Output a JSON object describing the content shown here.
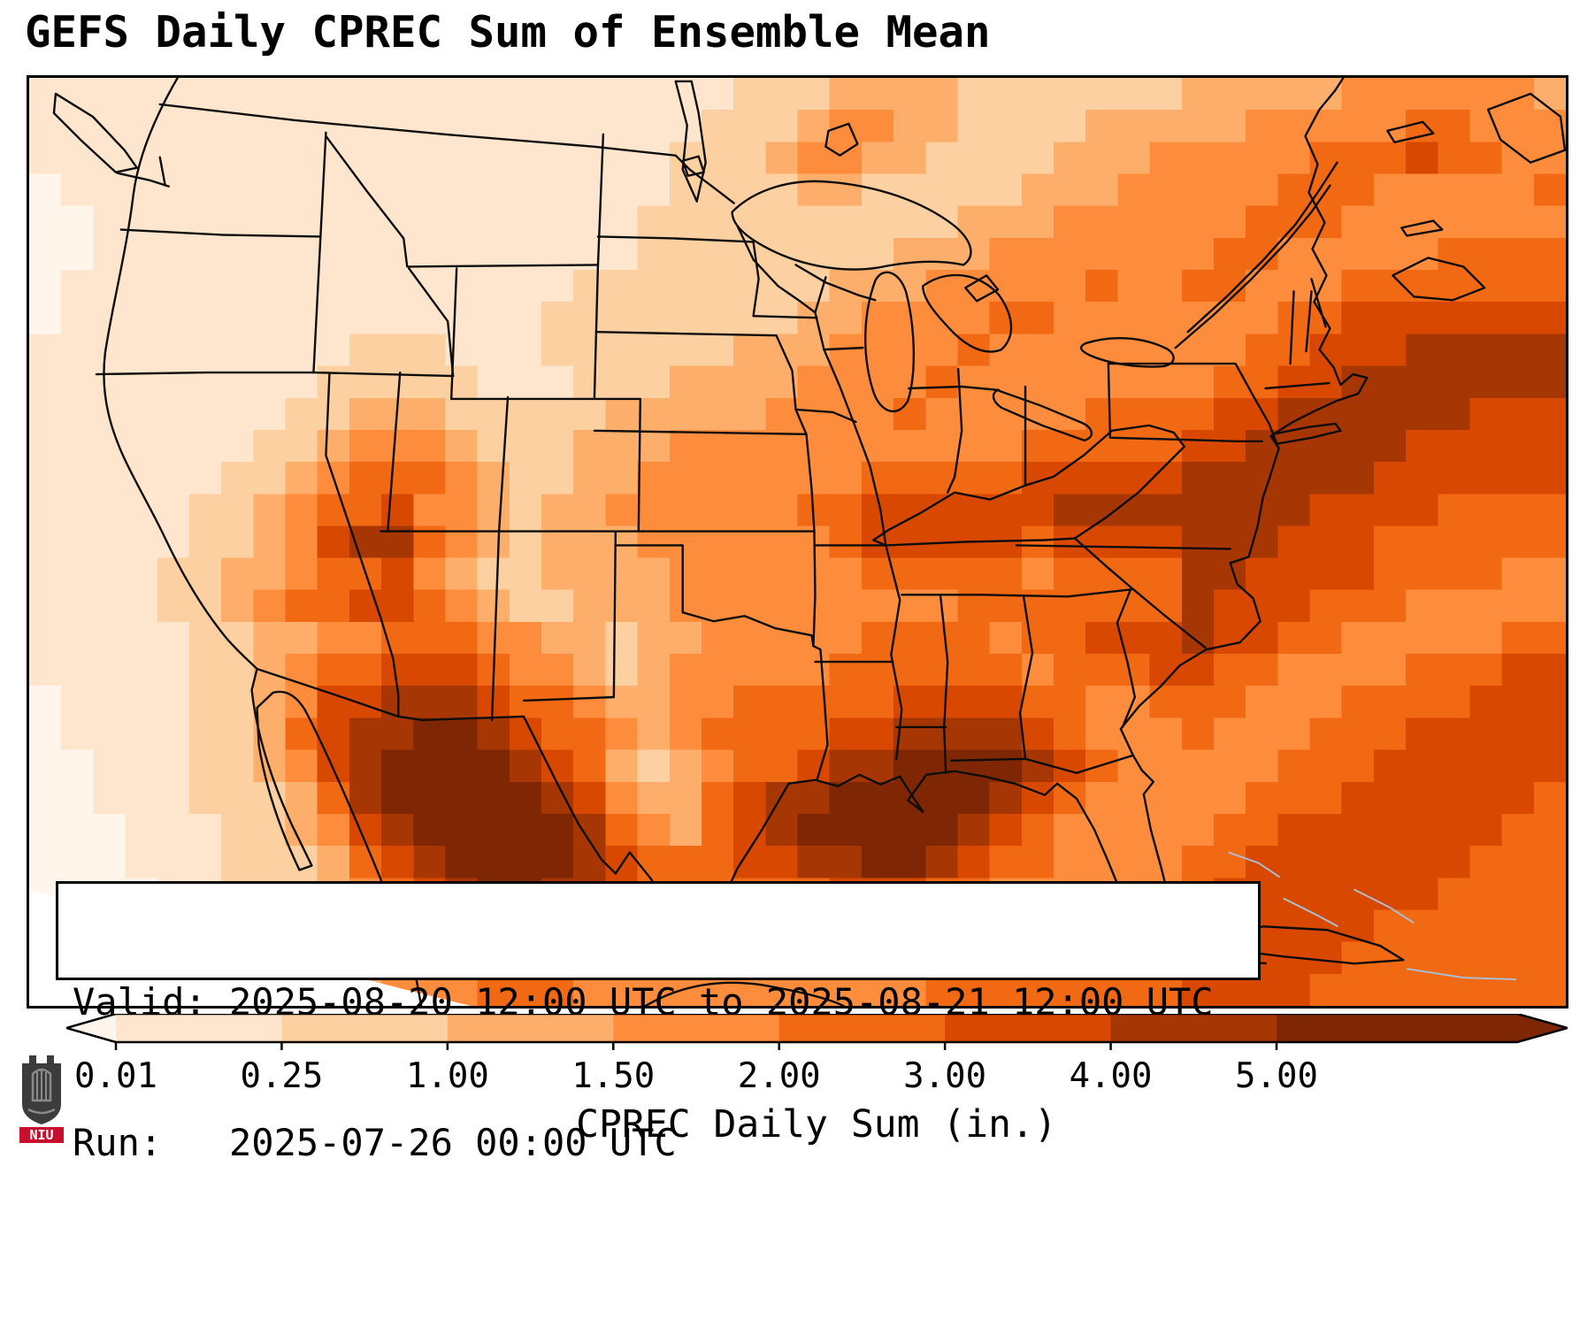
{
  "title": "GEFS Daily CPREC Sum of Ensemble Mean",
  "info_box": {
    "line1": "Valid: 2025-08-20 12:00 UTC to 2025-08-21 12:00 UTC",
    "line2": "Run:   2025-07-26 00:00 UTC"
  },
  "colorbar": {
    "label": "CPREC Daily Sum (in.)",
    "ticks": [
      "0.01",
      "0.25",
      "1.00",
      "1.50",
      "2.00",
      "3.00",
      "4.00",
      "5.00"
    ],
    "colors": [
      "#fff5eb",
      "#fee6ce",
      "#fdd0a2",
      "#fdae6b",
      "#fd8d3c",
      "#f16913",
      "#d94801",
      "#a63603",
      "#7f2704"
    ]
  },
  "logo": {
    "text": "NIU",
    "accent": "#c8102e",
    "shield": "#3c3c3c"
  },
  "chart_data": {
    "type": "heatmap",
    "title": "GEFS Daily CPREC Sum of Ensemble Mean",
    "legend_label": "CPREC Daily Sum (in.)",
    "units": "in.",
    "levels": [
      0.01,
      0.25,
      1.0,
      1.5,
      2.0,
      3.0,
      4.0,
      5.0
    ],
    "palette": "Oranges",
    "valid_from": "2025-08-20 12:00 UTC",
    "valid_to": "2025-08-21 12:00 UTC",
    "run": "2025-07-26 00:00 UTC",
    "grid_levels_rows": [
      "111111111111111111111122233332222222333334444443",
      "111111111111111111111222344332222333334444455444",
      "111111111111111111112223443322223334444455565544",
      "011111111111111111112222332222233344444555444445",
      "001111111111111111122222222223334444445554444444",
      "001111111111111111122222222333444444455444445555",
      "011111111111111112222222233344444544554445555555",
      "011111111111111122222222334444554444444556666666",
      "111111111122211122222233344445444444445566677777",
      "111111111222221112223333444454444444455667777777",
      "111111112233322222333334444544444555566777777666",
      "111111122344432223334444444444455555667777766666",
      "111111223455543223344444445555566666777777666666",
      "111112234556443233444444556666667777777766665555",
      "111112234677543233344444456666656666777666555555",
      "111122334556432233334444445555545555776666555544",
      "111122345566543223334444444445555555766655544444",
      "111112233445554433233444445555455666766554444455",
      "111112234556665443234444455555545556655444455566",
      "011112234667776554334455555666655445554445555666",
      "011112235677887655434555566777765444544455566666",
      "001112234678888765323455677888876544444555666666",
      "001112223578888876433567788888765444445556666665",
      "000111223467888887543567888887654444455666666655",
      "000111222356788887655566778876554444556666666555",
      "000011222345678877655555566655444444566666665555",
      "000011122334567766555444445544444445666666555555",
      "000011122344456655444444444444444455666665555555",
      "000001122334445554444444444455555555666655555555"
    ]
  }
}
